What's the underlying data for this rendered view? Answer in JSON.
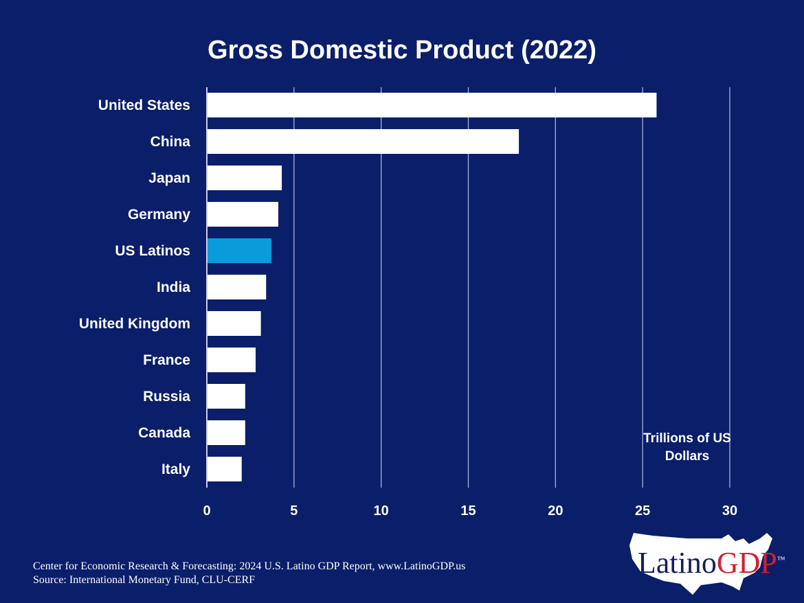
{
  "chart_data": {
    "type": "bar",
    "orientation": "horizontal",
    "title": "Gross Domestic Product (2022)",
    "categories": [
      "United States",
      "China",
      "Japan",
      "Germany",
      "US Latinos",
      "India",
      "United Kingdom",
      "France",
      "Russia",
      "Canada",
      "Italy"
    ],
    "values": [
      25.8,
      17.9,
      4.3,
      4.1,
      3.7,
      3.4,
      3.1,
      2.8,
      2.2,
      2.2,
      2.0
    ],
    "highlight": "US Latinos",
    "xlabel": "Trillions of US Dollars",
    "xlim": [
      0,
      30
    ],
    "xticks": [
      "0",
      "5",
      "10",
      "15",
      "20",
      "25",
      "30"
    ],
    "grid": "vertical",
    "colors": {
      "bar": "#ffffff",
      "highlight": "#0a9bdc",
      "background": "#0b1e6a"
    }
  },
  "footer": {
    "line1": "Center for Economic Research & Forecasting: 2024 U.S. Latino GDP Report, www.LatinoGDP.us",
    "line2": "Source: International Monetary Fund, CLU-CERF"
  },
  "logo": {
    "part1": "Latino",
    "part2": "GDP",
    "tm": "™"
  }
}
